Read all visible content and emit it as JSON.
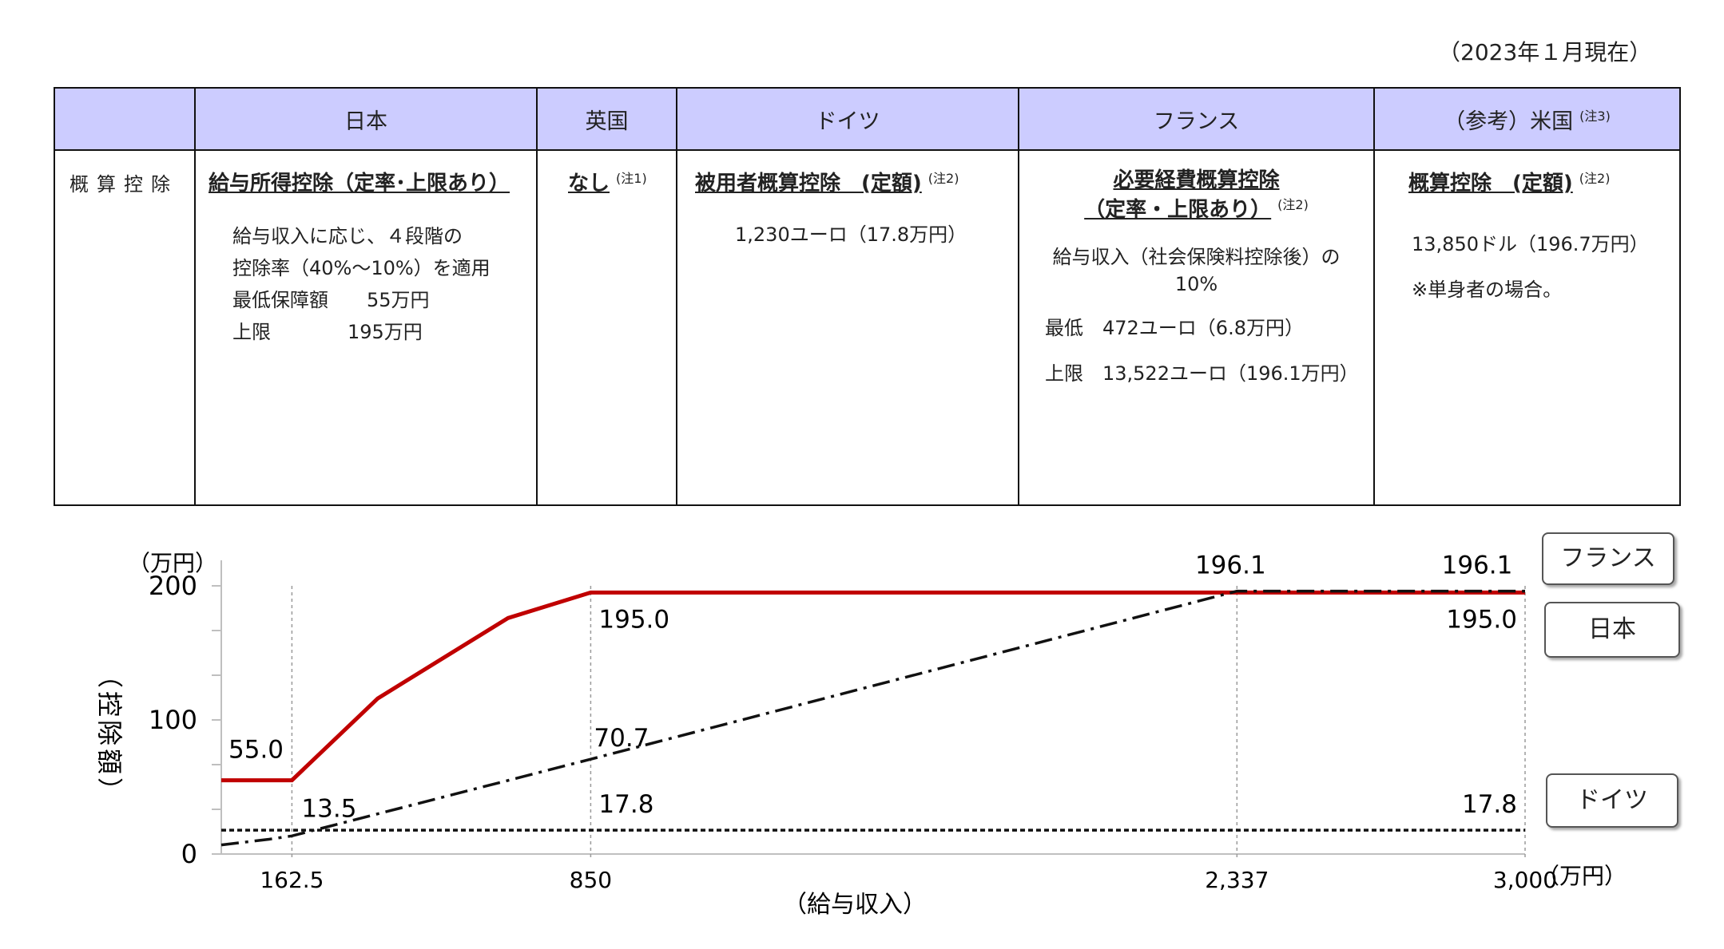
{
  "date_note": "（2023年１月現在）",
  "table": {
    "headers": [
      "",
      "日本",
      "英国",
      "ドイツ",
      "フランス",
      "（参考）米国"
    ],
    "us_header_note": "(注3)",
    "row_label": "概算控除",
    "japan": {
      "title": "給与所得控除（定率･上限あり）",
      "lines": [
        "給与収入に応じ、４段階の",
        "控除率（40%～10%）を適用",
        "最低保障額　　55万円",
        "上限　　　　195万円"
      ]
    },
    "uk": {
      "title": "なし",
      "note": "(注1)"
    },
    "germany": {
      "title": "被用者概算控除　(定額)",
      "note": "(注2)",
      "lines": [
        "1,230ユーロ（17.8万円）"
      ]
    },
    "france": {
      "title_1": "必要経費概算控除",
      "title_2": "（定率・上限あり）",
      "note": "(注2)",
      "line_1a": "給与収入（社会保険料控除後）の",
      "line_1b": "10%",
      "line_2": "最低　472ユーロ（6.8万円）",
      "line_3": "上限　13,522ユーロ（196.1万円）"
    },
    "us": {
      "title": "概算控除　(定額)",
      "note": "(注2)",
      "lines": [
        "13,850ドル（196.7万円）",
        "※単身者の場合。"
      ]
    }
  },
  "chart_data": {
    "type": "line",
    "y_unit": "（万円）",
    "ylabel": "（控除額）",
    "xlabel": "（給与収入）",
    "x_unit": "（万円）",
    "ylim": [
      0,
      200
    ],
    "xlim": [
      0,
      3000
    ],
    "yticks": [
      0,
      100,
      200
    ],
    "xticks": [
      {
        "value": 162.5,
        "label": "162.5"
      },
      {
        "value": 850,
        "label": "850"
      },
      {
        "value": 2337,
        "label": "2,337"
      },
      {
        "value": 3000,
        "label": "3,000"
      }
    ],
    "series": [
      {
        "name": "日本",
        "color": "#c00000",
        "style": "solid",
        "points": [
          [
            0,
            55
          ],
          [
            162.5,
            55
          ],
          [
            360,
            116
          ],
          [
            660,
            176
          ],
          [
            850,
            195
          ],
          [
            3000,
            195
          ]
        ]
      },
      {
        "name": "フランス",
        "color": "#111111",
        "style": "dashdot",
        "points": [
          [
            0,
            6.8
          ],
          [
            110,
            11
          ],
          [
            162.5,
            13.5
          ],
          [
            850,
            70.7
          ],
          [
            2337,
            196.1
          ],
          [
            3000,
            196.1
          ]
        ]
      },
      {
        "name": "ドイツ",
        "color": "#111111",
        "style": "dotted",
        "points": [
          [
            0,
            17.8
          ],
          [
            3000,
            17.8
          ]
        ]
      }
    ],
    "annotations": [
      {
        "text": "55.0",
        "x": 80,
        "y": 55
      },
      {
        "text": "13.5",
        "x": 162.5,
        "y": 13.5
      },
      {
        "text": "195.0",
        "x": 850,
        "y": 195
      },
      {
        "text": "70.7",
        "x": 850,
        "y": 70.7
      },
      {
        "text": "17.8",
        "x": 850,
        "y": 17.8
      },
      {
        "text": "196.1",
        "x": 2337,
        "y": 196.1
      },
      {
        "text": "196.1",
        "x": 3000,
        "y": 196.1
      },
      {
        "text": "195.0",
        "x": 3000,
        "y": 195
      },
      {
        "text": "17.8",
        "x": 3000,
        "y": 17.8
      }
    ],
    "legend": [
      "フランス",
      "日本",
      "ドイツ"
    ]
  }
}
